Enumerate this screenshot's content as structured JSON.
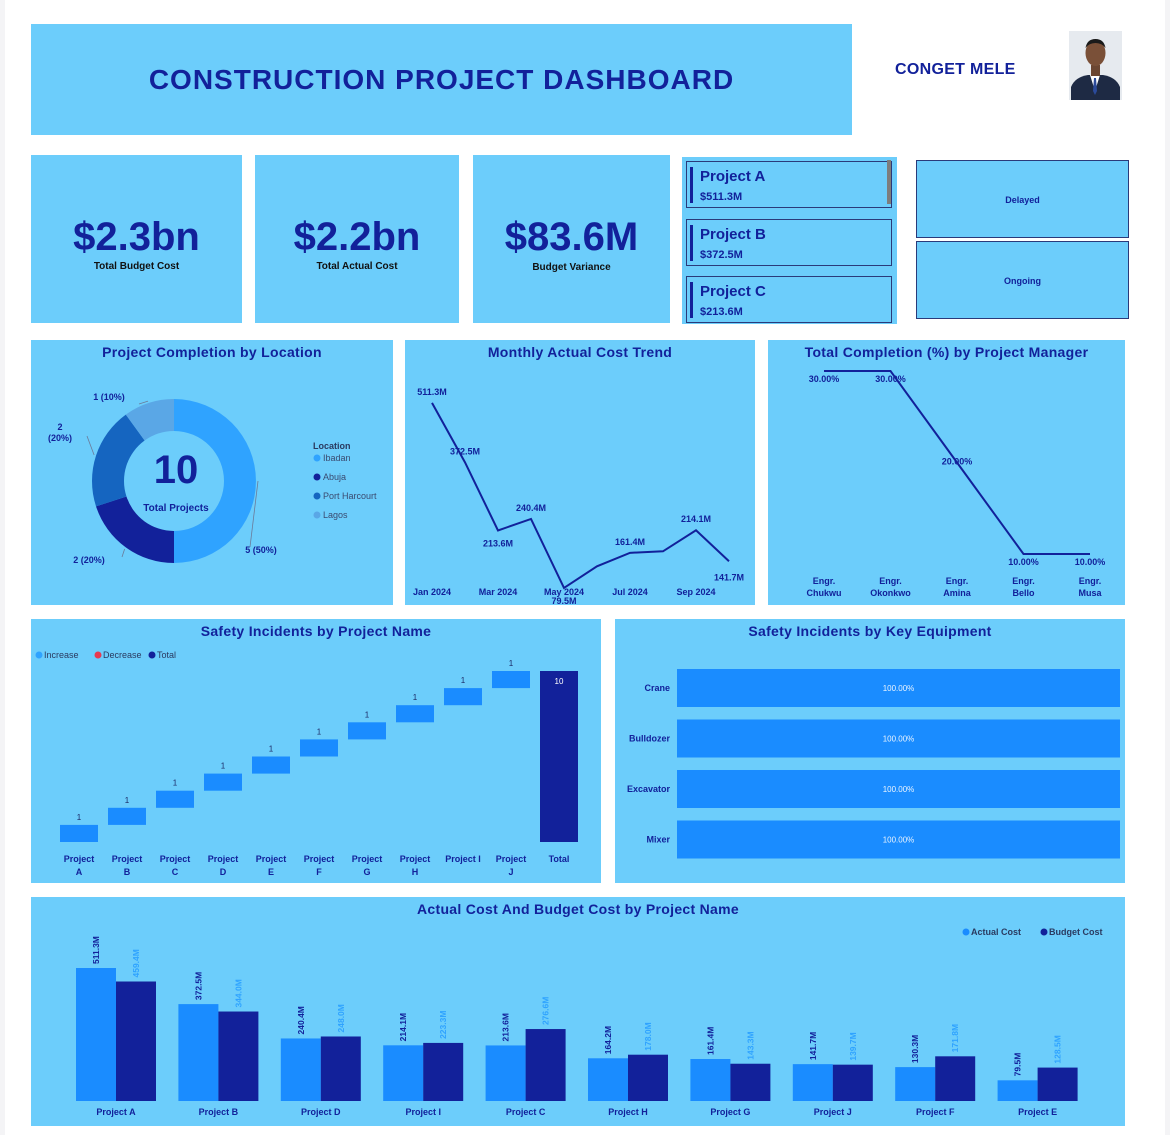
{
  "header": {
    "title": "CONSTRUCTION PROJECT DASHBOARD",
    "author": "CONGET MELE"
  },
  "colors": {
    "panel": "#6ccdfb",
    "navy": "#12219a",
    "blue": "#1a8cff",
    "light_blue": "#2fa3ff",
    "mid_blue": "#1565c0",
    "pale_blue": "#5aa7e6",
    "decrease": "#e8384f"
  },
  "kpis": [
    {
      "value": "$2.3bn",
      "label": "Total Budget Cost"
    },
    {
      "value": "$2.2bn",
      "label": "Total Actual Cost"
    },
    {
      "value": "$83.6M",
      "label": "Budget Variance"
    }
  ],
  "project_cards": [
    {
      "name": "Project A",
      "amount": "$511.3M"
    },
    {
      "name": "Project B",
      "amount": "$372.5M"
    },
    {
      "name": "Project C",
      "amount": "$213.6M"
    }
  ],
  "status_buttons": [
    "Delayed",
    "Ongoing"
  ],
  "chart_data": [
    {
      "type": "pie",
      "variant": "donut",
      "title": "Project Completion by Location",
      "center_value": "10",
      "center_label": "Total Projects",
      "legend_title": "Location",
      "categories": [
        "Ibadan",
        "Abuja",
        "Port Harcourt",
        "Lagos"
      ],
      "values": [
        5,
        2,
        2,
        1
      ],
      "data_labels": [
        "5 (50%)",
        "2 (20%)",
        "2\n(20%)",
        "1 (10%)"
      ],
      "colors": [
        "#2fa3ff",
        "#12219a",
        "#1565c0",
        "#5aa7e6"
      ],
      "legend_position": "right"
    },
    {
      "type": "line",
      "title": "Monthly Actual Cost Trend",
      "x": [
        "Jan 2024",
        "Feb 2024",
        "Mar 2024",
        "Apr 2024",
        "May 2024",
        "Jun 2024",
        "Jul 2024",
        "Aug 2024",
        "Sep 2024",
        "Oct 2024"
      ],
      "x_tick_labels": [
        "Jan 2024",
        "Mar 2024",
        "May 2024",
        "Jul 2024",
        "Sep 2024"
      ],
      "values": [
        511.3,
        372.5,
        213.6,
        240.4,
        79.5,
        130,
        161.4,
        165,
        214.1,
        141.7
      ],
      "data_labels": [
        "511.3M",
        "372.5M",
        "213.6M",
        "240.4M",
        "79.5M",
        "",
        "161.4M",
        "",
        "214.1M",
        "141.7M"
      ],
      "ylim": [
        0,
        560
      ]
    },
    {
      "type": "line",
      "title": "Total Completion (%) by Project Manager",
      "categories": [
        "Engr.\nChukwu",
        "Engr.\nOkonkwo",
        "Engr.\nAmina",
        "Engr.\nBello",
        "Engr.\nMusa"
      ],
      "values": [
        30,
        30,
        20,
        10,
        10
      ],
      "data_labels": [
        "30.00%",
        "30.00%",
        "20.00%",
        "10.00%",
        "10.00%"
      ],
      "ylim": [
        10,
        30
      ]
    },
    {
      "type": "bar",
      "variant": "waterfall",
      "title": "Safety Incidents by Project Name",
      "legend": [
        "Increase",
        "Decrease",
        "Total"
      ],
      "legend_position": "top-left",
      "categories": [
        "Project\nA",
        "Project\nB",
        "Project\nC",
        "Project\nD",
        "Project\nE",
        "Project\nF",
        "Project\nG",
        "Project\nH",
        "Project I",
        "Project\nJ",
        "Total"
      ],
      "values": [
        1,
        1,
        1,
        1,
        1,
        1,
        1,
        1,
        1,
        1,
        10
      ],
      "data_labels": [
        "1",
        "1",
        "1",
        "1",
        "1",
        "1",
        "1",
        "1",
        "1",
        "1",
        "10"
      ],
      "ylim": [
        0,
        10
      ]
    },
    {
      "type": "bar",
      "orientation": "horizontal",
      "title": "Safety Incidents by Key Equipment",
      "categories": [
        "Crane",
        "Bulldozer",
        "Excavator",
        "Mixer"
      ],
      "values": [
        100,
        100,
        100,
        100
      ],
      "data_labels": [
        "100.00%",
        "100.00%",
        "100.00%",
        "100.00%"
      ],
      "xlim": [
        0,
        100
      ]
    },
    {
      "type": "bar",
      "title": "Actual Cost And Budget Cost by Project Name",
      "legend_position": "top-right",
      "categories": [
        "Project A",
        "Project B",
        "Project D",
        "Project I",
        "Project C",
        "Project H",
        "Project G",
        "Project J",
        "Project F",
        "Project E"
      ],
      "series": [
        {
          "name": "Actual Cost",
          "values": [
            511.3,
            372.5,
            240.4,
            214.1,
            213.6,
            164.2,
            161.4,
            141.7,
            130.3,
            79.5
          ],
          "labels": [
            "511.3M",
            "372.5M",
            "240.4M",
            "214.1M",
            "213.6M",
            "164.2M",
            "161.4M",
            "141.7M",
            "130.3M",
            "79.5M"
          ]
        },
        {
          "name": "Budget Cost",
          "values": [
            459.4,
            344.0,
            248.0,
            223.3,
            276.6,
            178.0,
            143.3,
            139.7,
            171.8,
            128.5
          ],
          "labels": [
            "459.4M",
            "344.0M",
            "248.0M",
            "223.3M",
            "276.6M",
            "178.0M",
            "143.3M",
            "139.7M",
            "171.8M",
            "128.5M"
          ]
        }
      ],
      "ylim": [
        0,
        511.3
      ]
    }
  ]
}
